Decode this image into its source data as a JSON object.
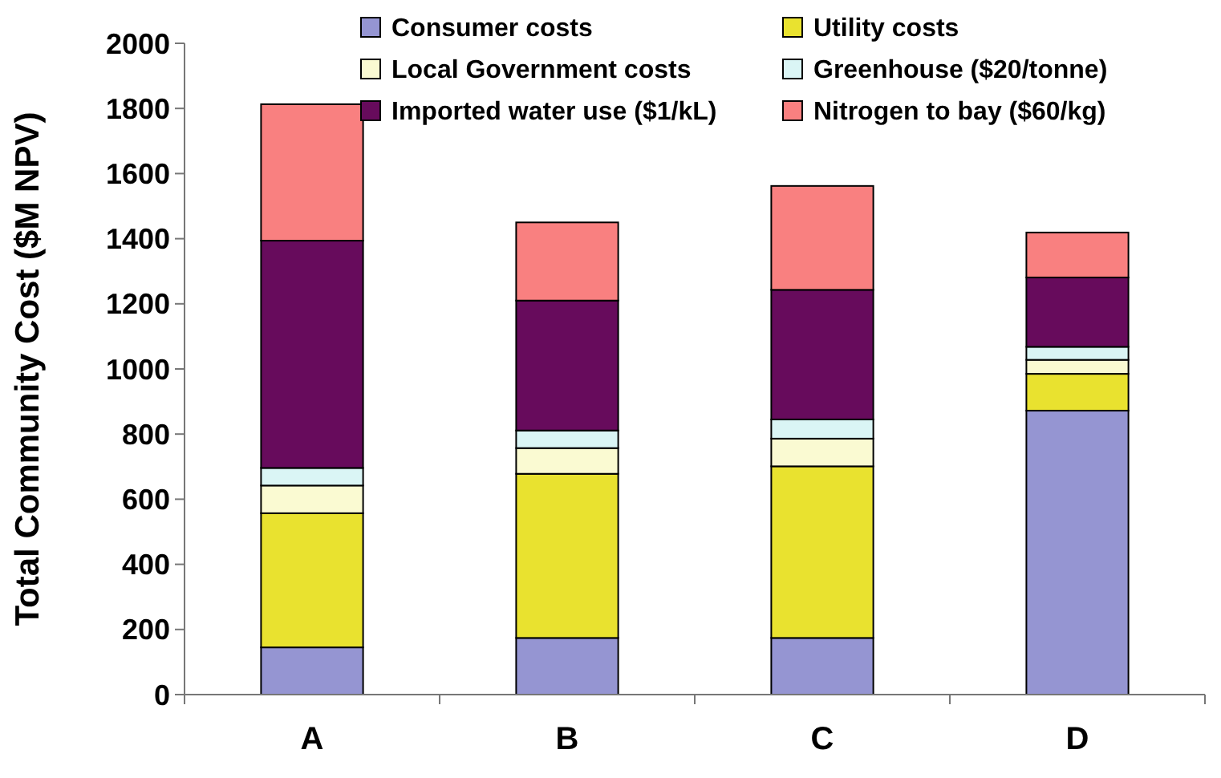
{
  "chart_data": {
    "type": "bar",
    "stacked": true,
    "ylabel": "Total Community Cost ($M NPV)",
    "categories": [
      "A",
      "B",
      "C",
      "D"
    ],
    "series": [
      {
        "name": "Consumer costs",
        "color": "#9595d2",
        "values": [
          145,
          174,
          174,
          872
        ]
      },
      {
        "name": "Utility costs",
        "color": "#e9e22f",
        "values": [
          412,
          504,
          527,
          113
        ]
      },
      {
        "name": "Local Government costs",
        "color": "#fafad2",
        "values": [
          85,
          79,
          85,
          43
        ]
      },
      {
        "name": "Greenhouse ($20/tonne)",
        "color": "#daf5f5",
        "values": [
          54,
          54,
          59,
          40
        ]
      },
      {
        "name": "Imported water use ($1/kL)",
        "color": "#670b5c",
        "values": [
          698,
          399,
          398,
          213
        ]
      },
      {
        "name": "Nitrogen to bay ($60/kg)",
        "color": "#f98080",
        "values": [
          419,
          240,
          319,
          138
        ]
      }
    ],
    "ylim": [
      0,
      2000
    ],
    "yticks": [
      0,
      200,
      400,
      600,
      800,
      1000,
      1200,
      1400,
      1600,
      1800,
      2000
    ],
    "grid": false,
    "legend": "top"
  }
}
